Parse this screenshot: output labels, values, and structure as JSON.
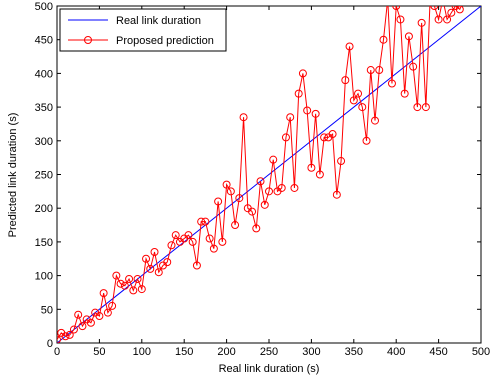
{
  "chart_data": {
    "type": "line",
    "xlabel": "Real link duration (s)",
    "ylabel": "Predicted link duration (s)",
    "xlim": [
      0,
      500
    ],
    "ylim": [
      0,
      500
    ],
    "xticks": [
      0,
      50,
      100,
      150,
      200,
      250,
      300,
      350,
      400,
      450,
      500
    ],
    "yticks": [
      0,
      50,
      100,
      150,
      200,
      250,
      300,
      350,
      400,
      450,
      500
    ],
    "legend": "upper left",
    "series": [
      {
        "name": "Real link duration",
        "color": "#0000ff",
        "marker": "none",
        "x": [
          0,
          500
        ],
        "values": [
          0,
          500
        ]
      },
      {
        "name": "Proposed prediction",
        "color": "#ff0000",
        "marker": "circle",
        "x": [
          0,
          5,
          10,
          15,
          20,
          25,
          30,
          35,
          40,
          45,
          50,
          55,
          60,
          65,
          70,
          75,
          80,
          85,
          90,
          95,
          100,
          105,
          110,
          115,
          120,
          125,
          130,
          135,
          140,
          145,
          150,
          155,
          160,
          165,
          170,
          175,
          180,
          185,
          190,
          195,
          200,
          205,
          210,
          215,
          220,
          225,
          230,
          235,
          240,
          245,
          250,
          255,
          260,
          265,
          270,
          275,
          280,
          285,
          290,
          295,
          300,
          305,
          310,
          315,
          320,
          325,
          330,
          335,
          340,
          345,
          350,
          355,
          360,
          365,
          370,
          375,
          380,
          385,
          390,
          395,
          400,
          405,
          410,
          415,
          420,
          425,
          430,
          435,
          440,
          445,
          450,
          455,
          460,
          465,
          470,
          475,
          480
        ],
        "values": [
          5,
          15,
          10,
          12,
          20,
          42,
          25,
          35,
          30,
          45,
          40,
          74,
          45,
          55,
          100,
          88,
          85,
          95,
          78,
          95,
          80,
          125,
          110,
          135,
          105,
          115,
          120,
          145,
          160,
          150,
          155,
          160,
          150,
          115,
          180,
          180,
          155,
          140,
          210,
          150,
          235,
          225,
          175,
          215,
          335,
          200,
          195,
          170,
          240,
          205,
          225,
          272,
          225,
          230,
          305,
          335,
          230,
          370,
          400,
          345,
          260,
          340,
          250,
          305,
          305,
          310,
          220,
          270,
          390,
          440,
          360,
          370,
          350,
          300,
          405,
          330,
          405,
          450,
          510,
          385,
          500,
          480,
          370,
          455,
          410,
          350,
          475,
          350,
          510,
          500,
          480,
          510,
          480,
          490,
          500,
          495,
          510
        ]
      }
    ]
  }
}
